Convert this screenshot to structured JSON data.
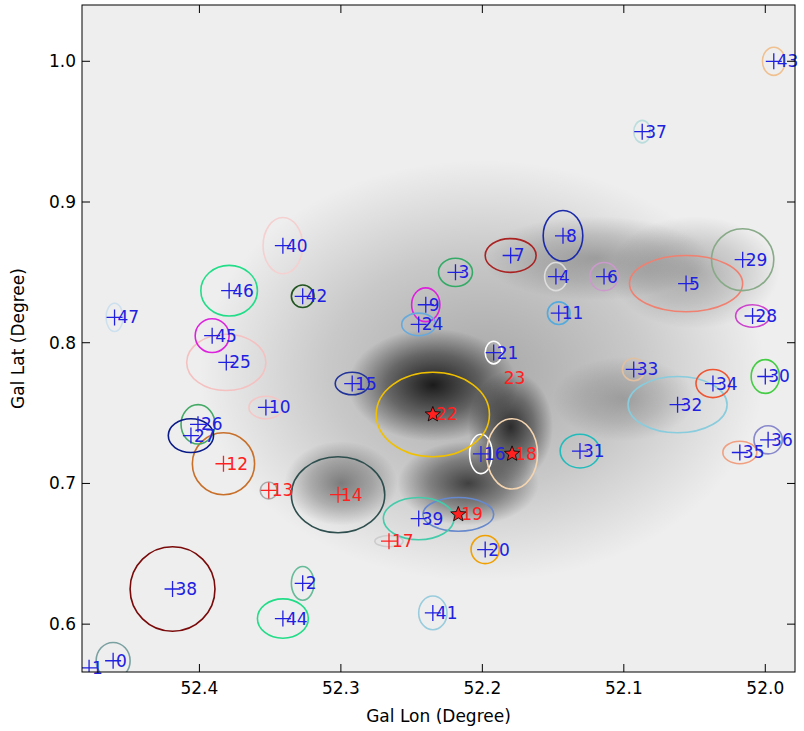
{
  "chart_data": {
    "type": "scatter",
    "x_label": "Gal Lon (Degree)",
    "y_label": "Gal Lat (Degree)",
    "xlim": [
      52.483,
      51.979
    ],
    "ylim": [
      0.566,
      1.04
    ],
    "xticks": [
      52.4,
      52.3,
      52.2,
      52.1,
      {
        "value": 52,
        "label": "52.0"
      }
    ],
    "yticks": [
      0.6,
      0.7,
      0.8,
      0.9,
      {
        "value": 1,
        "label": "1.0"
      }
    ],
    "background_peaks": [
      {
        "x": 52.2,
        "y": 0.78,
        "rx": 0.2,
        "ry": 0.15,
        "intensity": 0.35
      },
      {
        "x": 52.12,
        "y": 0.86,
        "rx": 0.08,
        "ry": 0.03,
        "intensity": 0.3
      },
      {
        "x": 52.05,
        "y": 0.85,
        "rx": 0.06,
        "ry": 0.04,
        "intensity": 0.3
      },
      {
        "x": 52.1,
        "y": 0.76,
        "rx": 0.05,
        "ry": 0.03,
        "intensity": 0.25
      },
      {
        "x": 52.3,
        "y": 0.7,
        "rx": 0.04,
        "ry": 0.03,
        "intensity": 0.5
      },
      {
        "x": 52.21,
        "y": 0.7,
        "rx": 0.05,
        "ry": 0.03,
        "intensity": 0.8
      },
      {
        "x": 52.18,
        "y": 0.74,
        "rx": 0.03,
        "ry": 0.04,
        "intensity": 0.9
      },
      {
        "x": 52.235,
        "y": 0.77,
        "rx": 0.06,
        "ry": 0.04,
        "intensity": 1.0
      }
    ],
    "sources": [
      {
        "label": "0",
        "x": 52.461,
        "y": 0.574,
        "marker": "plus",
        "label_color": "#2020e0",
        "contour": {
          "color": "#7aa0a0",
          "rx": 0.012,
          "ry": 0.013
        }
      },
      {
        "label": "1",
        "x": 52.478,
        "y": 0.569,
        "marker": "plus",
        "label_color": "#2020e0"
      },
      {
        "label": "2",
        "x": 52.327,
        "y": 0.629,
        "marker": "plus",
        "label_color": "#2020e0",
        "contour": {
          "color": "#66bb99",
          "rx": 0.008,
          "ry": 0.012
        }
      },
      {
        "label": "3",
        "x": 52.219,
        "y": 0.85,
        "marker": "plus",
        "label_color": "#2020e0",
        "contour": {
          "color": "#33aa66",
          "rx": 0.012,
          "ry": 0.01
        }
      },
      {
        "label": "4",
        "x": 52.148,
        "y": 0.847,
        "marker": "plus",
        "label_color": "#2020e0",
        "contour": {
          "color": "#dddddd",
          "rx": 0.008,
          "ry": 0.01
        }
      },
      {
        "label": "5",
        "x": 52.056,
        "y": 0.842,
        "marker": "plus",
        "label_color": "#2020e0",
        "contour": {
          "color": "#f08070",
          "rx": 0.04,
          "ry": 0.02
        }
      },
      {
        "label": "6",
        "x": 52.114,
        "y": 0.847,
        "marker": "plus",
        "label_color": "#2020e0",
        "contour": {
          "color": "#cc99cc",
          "rx": 0.01,
          "ry": 0.01
        }
      },
      {
        "label": "7",
        "x": 52.18,
        "y": 0.862,
        "marker": "plus",
        "label_color": "#2020e0",
        "contour": {
          "color": "#aa2222",
          "rx": 0.018,
          "ry": 0.012
        }
      },
      {
        "label": "8",
        "x": 52.143,
        "y": 0.876,
        "marker": "plus",
        "label_color": "#2020e0",
        "contour": {
          "color": "#1a2aaa",
          "rx": 0.014,
          "ry": 0.018
        }
      },
      {
        "label": "9",
        "x": 52.24,
        "y": 0.827,
        "marker": "plus",
        "label_color": "#2020e0",
        "contour": {
          "color": "#dd22dd",
          "rx": 0.01,
          "ry": 0.012
        }
      },
      {
        "label": "10",
        "x": 52.353,
        "y": 0.754,
        "marker": "plus",
        "label_color": "#2020e0",
        "contour": {
          "color": "#f5c6c6",
          "rx": 0.012,
          "ry": 0.008
        }
      },
      {
        "label": "11",
        "x": 52.146,
        "y": 0.821,
        "marker": "plus",
        "label_color": "#2020e0",
        "contour": {
          "color": "#55aadd",
          "rx": 0.008,
          "ry": 0.008
        }
      },
      {
        "label": "12",
        "x": 52.383,
        "y": 0.714,
        "marker": "plus",
        "label_color": "#ff2020",
        "contour": {
          "color": "#c8702a",
          "rx": 0.022,
          "ry": 0.022
        }
      },
      {
        "label": "13",
        "x": 52.351,
        "y": 0.695,
        "marker": "plus",
        "label_color": "#ff2020",
        "contour": {
          "color": "#aaaaaa",
          "rx": 0.006,
          "ry": 0.006
        }
      },
      {
        "label": "14",
        "x": 52.302,
        "y": 0.692,
        "marker": "plus",
        "label_color": "#ff2020",
        "contour": {
          "color": "#2f4f4f",
          "rx": 0.033,
          "ry": 0.027
        }
      },
      {
        "label": "15",
        "x": 52.292,
        "y": 0.771,
        "marker": "plus",
        "label_color": "#2020e0",
        "contour": {
          "color": "#223399",
          "rx": 0.012,
          "ry": 0.008
        }
      },
      {
        "label": "16",
        "x": 52.201,
        "y": 0.721,
        "marker": "plus",
        "label_color": "#2020e0",
        "contour": {
          "color": "#ffffff",
          "rx": 0.008,
          "ry": 0.014
        }
      },
      {
        "label": "17",
        "x": 52.266,
        "y": 0.659,
        "marker": "plus",
        "label_color": "#ff2020",
        "contour": {
          "color": "#cccccc",
          "rx": 0.01,
          "ry": 0.004
        }
      },
      {
        "label": "18",
        "x": 52.179,
        "y": 0.721,
        "marker": "star",
        "label_color": "#ff2020",
        "contour": {
          "color": "#f5d5b0",
          "rx": 0.018,
          "ry": 0.025
        }
      },
      {
        "label": "19",
        "x": 52.217,
        "y": 0.678,
        "marker": "star",
        "label_color": "#ff2020",
        "contour": {
          "color": "#6688cc",
          "rx": 0.025,
          "ry": 0.012
        }
      },
      {
        "label": "20",
        "x": 52.198,
        "y": 0.653,
        "marker": "plus",
        "label_color": "#2020e0",
        "contour": {
          "color": "#f0a000",
          "rx": 0.01,
          "ry": 0.01
        }
      },
      {
        "label": "21",
        "x": 52.192,
        "y": 0.793,
        "marker": "plus",
        "label_color": "#2020e0",
        "contour": {
          "color": "#ffffff",
          "rx": 0.006,
          "ry": 0.008
        }
      },
      {
        "label": "22",
        "x": 52.235,
        "y": 0.749,
        "marker": "star",
        "label_color": "#ff2020",
        "contour": {
          "color": "#f0c000",
          "rx": 0.04,
          "ry": 0.03
        }
      },
      {
        "label": "23",
        "x": 52.187,
        "y": 0.775,
        "marker": "none",
        "label_color": "#ff2020"
      },
      {
        "label": "24",
        "x": 52.245,
        "y": 0.813,
        "marker": "plus",
        "label_color": "#2020e0",
        "contour": {
          "color": "#66aadd",
          "rx": 0.012,
          "ry": 0.008
        }
      },
      {
        "label": "25",
        "x": 52.381,
        "y": 0.786,
        "marker": "plus",
        "label_color": "#2020e0",
        "contour": {
          "color": "#f5c0c0",
          "rx": 0.028,
          "ry": 0.02
        }
      },
      {
        "label": "26",
        "x": 52.401,
        "y": 0.742,
        "marker": "plus",
        "label_color": "#2020e0",
        "contour": {
          "color": "#44aa66",
          "rx": 0.012,
          "ry": 0.014
        }
      },
      {
        "label": "27",
        "x": 52.406,
        "y": 0.734,
        "marker": "plus",
        "label_color": "#2020e0",
        "contour": {
          "color": "#0a1a88",
          "rx": 0.016,
          "ry": 0.012
        }
      },
      {
        "label": "28",
        "x": 52.009,
        "y": 0.819,
        "marker": "plus",
        "label_color": "#2020e0",
        "contour": {
          "color": "#cc44cc",
          "rx": 0.012,
          "ry": 0.008
        }
      },
      {
        "label": "29",
        "x": 52.016,
        "y": 0.859,
        "marker": "plus",
        "label_color": "#2020e0",
        "contour": {
          "color": "#88aa88",
          "rx": 0.022,
          "ry": 0.022
        }
      },
      {
        "label": "30",
        "x": 52.0,
        "y": 0.776,
        "marker": "plus",
        "label_color": "#2020e0",
        "contour": {
          "color": "#44cc44",
          "rx": 0.01,
          "ry": 0.012
        }
      },
      {
        "label": "31",
        "x": 52.131,
        "y": 0.723,
        "marker": "plus",
        "label_color": "#2020e0",
        "contour": {
          "color": "#22bbbb",
          "rx": 0.014,
          "ry": 0.012
        }
      },
      {
        "label": "32",
        "x": 52.062,
        "y": 0.756,
        "marker": "plus",
        "label_color": "#2020e0",
        "contour": {
          "color": "#88ccdd",
          "rx": 0.035,
          "ry": 0.02
        }
      },
      {
        "label": "33",
        "x": 52.093,
        "y": 0.781,
        "marker": "plus",
        "label_color": "#2020e0",
        "contour": {
          "color": "#e0c0a0",
          "rx": 0.008,
          "ry": 0.008
        }
      },
      {
        "label": "34",
        "x": 52.037,
        "y": 0.771,
        "marker": "plus",
        "label_color": "#2020e0",
        "contour": {
          "color": "#ee5533",
          "rx": 0.012,
          "ry": 0.01
        }
      },
      {
        "label": "35",
        "x": 52.018,
        "y": 0.722,
        "marker": "plus",
        "label_color": "#2020e0",
        "contour": {
          "color": "#f0a080",
          "rx": 0.012,
          "ry": 0.008
        }
      },
      {
        "label": "36",
        "x": 51.998,
        "y": 0.731,
        "marker": "plus",
        "label_color": "#2020e0",
        "contour": {
          "color": "#8888cc",
          "rx": 0.01,
          "ry": 0.01
        }
      },
      {
        "label": "37",
        "x": 52.087,
        "y": 0.95,
        "marker": "plus",
        "label_color": "#2020e0",
        "contour": {
          "color": "#bbdddd",
          "rx": 0.006,
          "ry": 0.008
        }
      },
      {
        "label": "38",
        "x": 52.419,
        "y": 0.625,
        "marker": "plus",
        "label_color": "#2020e0",
        "contour": {
          "color": "#7a0a0a",
          "rx": 0.03,
          "ry": 0.03
        }
      },
      {
        "label": "39",
        "x": 52.245,
        "y": 0.675,
        "marker": "plus",
        "label_color": "#2020e0",
        "contour": {
          "color": "#44ccaa",
          "rx": 0.025,
          "ry": 0.015
        }
      },
      {
        "label": "40",
        "x": 52.341,
        "y": 0.869,
        "marker": "plus",
        "label_color": "#2020e0",
        "contour": {
          "color": "#f5d0d0",
          "rx": 0.014,
          "ry": 0.02
        }
      },
      {
        "label": "41",
        "x": 52.235,
        "y": 0.608,
        "marker": "plus",
        "label_color": "#2020e0",
        "contour": {
          "color": "#99ccdd",
          "rx": 0.01,
          "ry": 0.012
        }
      },
      {
        "label": "42",
        "x": 52.327,
        "y": 0.833,
        "marker": "plus",
        "label_color": "#2020e0",
        "contour": {
          "color": "#225522",
          "rx": 0.008,
          "ry": 0.008
        }
      },
      {
        "label": "43",
        "x": 51.994,
        "y": 1.0,
        "marker": "plus",
        "label_color": "#2020e0",
        "contour": {
          "color": "#f0c090",
          "rx": 0.008,
          "ry": 0.01
        }
      },
      {
        "label": "44",
        "x": 52.341,
        "y": 0.604,
        "marker": "plus",
        "label_color": "#2020e0",
        "contour": {
          "color": "#22dd88",
          "rx": 0.018,
          "ry": 0.014
        }
      },
      {
        "label": "45",
        "x": 52.391,
        "y": 0.805,
        "marker": "plus",
        "label_color": "#2020e0",
        "contour": {
          "color": "#dd22dd",
          "rx": 0.012,
          "ry": 0.012
        }
      },
      {
        "label": "46",
        "x": 52.379,
        "y": 0.837,
        "marker": "plus",
        "label_color": "#2020e0",
        "contour": {
          "color": "#22dd88",
          "rx": 0.02,
          "ry": 0.018
        }
      },
      {
        "label": "47",
        "x": 52.46,
        "y": 0.818,
        "marker": "plus",
        "label_color": "#2020e0",
        "contour": {
          "color": "#cce0ee",
          "rx": 0.006,
          "ry": 0.01
        }
      }
    ]
  }
}
